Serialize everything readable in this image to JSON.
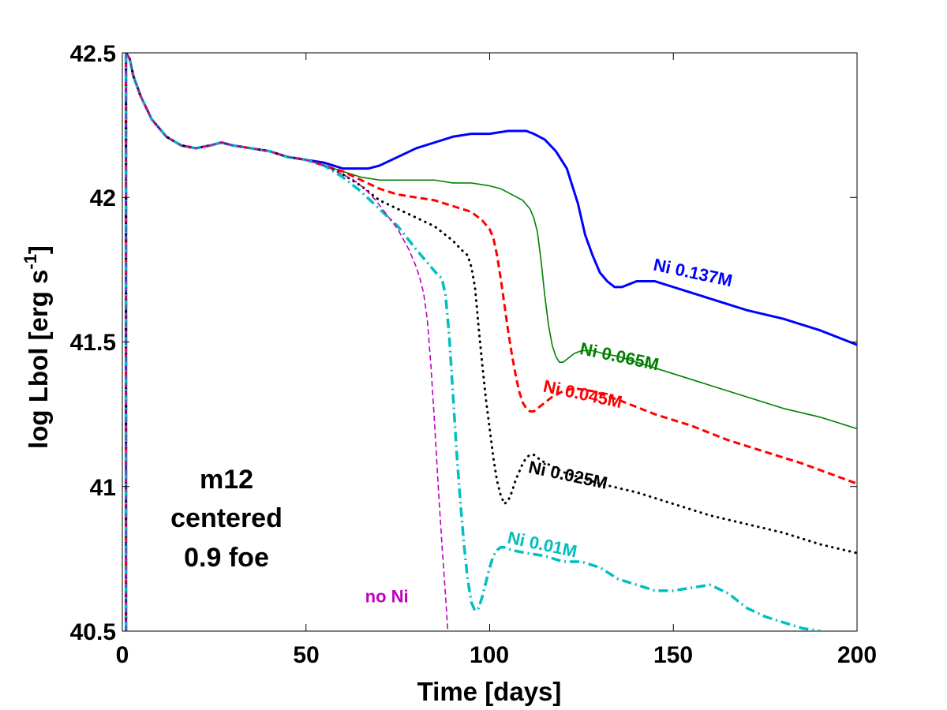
{
  "chart_data": {
    "type": "line",
    "title": "",
    "xlabel": "Time [days]",
    "ylabel": "log Lbol [erg s",
    "ylabel_sup": "-1",
    "ylabel_close": "]",
    "xlim": [
      0,
      200
    ],
    "ylim": [
      40.5,
      42.5
    ],
    "xticks": [
      0,
      50,
      100,
      150,
      200
    ],
    "xtick_labels": [
      "0",
      "50",
      "100",
      "150",
      "200"
    ],
    "yticks": [
      40.5,
      41,
      41.5,
      42,
      42.5
    ],
    "ytick_labels": [
      "40.5",
      "41",
      "41.5",
      "42",
      "42.5"
    ],
    "grid": false,
    "annotation": [
      "m12",
      "centered",
      "0.9 foe"
    ],
    "series": [
      {
        "name": "Ni 0.137M",
        "color": "#0000ff",
        "style": "solid-thick",
        "label_pos": [
          155,
          41.72
        ],
        "label_rot": 12,
        "x": [
          1,
          2,
          3,
          5,
          8,
          12,
          16,
          20,
          24,
          27,
          30,
          35,
          40,
          45,
          50,
          55,
          60,
          63,
          67,
          70,
          75,
          80,
          85,
          90,
          95,
          100,
          105,
          108,
          110,
          112,
          115,
          118,
          121,
          124,
          126,
          128,
          130,
          132,
          134,
          136,
          138,
          140,
          142,
          145,
          150,
          155,
          160,
          170,
          180,
          190,
          200
        ],
        "y": [
          42.5,
          42.48,
          42.42,
          42.35,
          42.27,
          42.21,
          42.18,
          42.17,
          42.18,
          42.19,
          42.18,
          42.17,
          42.16,
          42.14,
          42.13,
          42.12,
          42.1,
          42.1,
          42.1,
          42.11,
          42.14,
          42.17,
          42.19,
          42.21,
          42.22,
          42.22,
          42.23,
          42.23,
          42.23,
          42.22,
          42.2,
          42.16,
          42.1,
          41.98,
          41.87,
          41.8,
          41.74,
          41.71,
          41.69,
          41.69,
          41.7,
          41.71,
          41.71,
          41.71,
          41.69,
          41.67,
          41.65,
          41.61,
          41.58,
          41.54,
          41.49
        ]
      },
      {
        "name": "Ni 0.065M",
        "color": "#008000",
        "style": "solid-thin",
        "label_pos": [
          135,
          41.43
        ],
        "label_rot": 12,
        "x": [
          1,
          2,
          3,
          5,
          8,
          12,
          16,
          20,
          24,
          27,
          30,
          35,
          40,
          45,
          50,
          55,
          60,
          65,
          70,
          75,
          80,
          85,
          90,
          95,
          100,
          103,
          106,
          109,
          111,
          112,
          113,
          114,
          115,
          116,
          117,
          118,
          119,
          120,
          121,
          123,
          125,
          128,
          131,
          135,
          140,
          150,
          160,
          170,
          180,
          190,
          200
        ],
        "y": [
          42.5,
          42.48,
          42.42,
          42.35,
          42.27,
          42.21,
          42.18,
          42.17,
          42.18,
          42.19,
          42.18,
          42.17,
          42.16,
          42.14,
          42.13,
          42.11,
          42.09,
          42.07,
          42.06,
          42.06,
          42.06,
          42.06,
          42.05,
          42.05,
          42.04,
          42.03,
          42.01,
          41.99,
          41.96,
          41.93,
          41.88,
          41.78,
          41.66,
          41.56,
          41.49,
          41.45,
          41.43,
          41.43,
          41.44,
          41.46,
          41.47,
          41.47,
          41.46,
          41.45,
          41.43,
          41.39,
          41.35,
          41.31,
          41.27,
          41.24,
          41.2
        ]
      },
      {
        "name": "Ni 0.045M",
        "color": "#ff0000",
        "style": "dashed-thick",
        "label_pos": [
          125,
          41.3
        ],
        "label_rot": 12,
        "x": [
          1,
          2,
          3,
          5,
          8,
          12,
          16,
          20,
          24,
          27,
          30,
          35,
          40,
          45,
          50,
          55,
          60,
          65,
          70,
          75,
          80,
          85,
          90,
          95,
          98,
          100,
          101,
          102,
          103,
          104,
          105,
          106,
          107,
          108,
          109,
          110,
          111,
          112,
          113,
          115,
          117,
          120,
          123,
          128,
          135,
          145,
          155,
          165,
          175,
          185,
          200
        ],
        "y": [
          42.5,
          42.48,
          42.42,
          42.35,
          42.27,
          42.21,
          42.18,
          42.17,
          42.18,
          42.19,
          42.18,
          42.17,
          42.16,
          42.14,
          42.13,
          42.11,
          42.09,
          42.06,
          42.03,
          42.01,
          42.0,
          41.99,
          41.97,
          41.95,
          41.92,
          41.89,
          41.86,
          41.8,
          41.72,
          41.63,
          41.54,
          41.46,
          41.39,
          41.33,
          41.29,
          41.27,
          41.26,
          41.26,
          41.27,
          41.29,
          41.31,
          41.33,
          41.34,
          41.33,
          41.3,
          41.25,
          41.21,
          41.16,
          41.12,
          41.08,
          41.01
        ]
      },
      {
        "name": "Ni 0.025M",
        "color": "#000000",
        "style": "dotted",
        "label_pos": [
          121,
          41.02
        ],
        "label_rot": 12,
        "x": [
          1,
          2,
          3,
          5,
          8,
          12,
          16,
          20,
          24,
          27,
          30,
          35,
          40,
          45,
          50,
          55,
          60,
          65,
          70,
          75,
          80,
          85,
          90,
          93,
          94,
          95,
          96,
          97,
          98,
          99,
          100,
          101,
          102,
          103,
          104,
          105,
          106,
          107,
          108,
          109,
          110,
          111,
          112,
          114,
          117,
          120,
          125,
          130,
          140,
          150,
          160,
          170,
          180,
          190,
          200
        ],
        "y": [
          42.5,
          42.48,
          42.42,
          42.35,
          42.27,
          42.21,
          42.18,
          42.17,
          42.18,
          42.19,
          42.18,
          42.17,
          42.16,
          42.14,
          42.13,
          42.11,
          42.08,
          42.04,
          41.99,
          41.96,
          41.93,
          41.9,
          41.85,
          41.81,
          41.8,
          41.76,
          41.69,
          41.55,
          41.42,
          41.3,
          41.2,
          41.1,
          41.02,
          40.97,
          40.94,
          40.95,
          40.98,
          41.02,
          41.05,
          41.08,
          41.1,
          41.11,
          41.11,
          41.09,
          41.07,
          41.05,
          41.03,
          41.01,
          40.98,
          40.94,
          40.9,
          40.87,
          40.84,
          40.8,
          40.77
        ]
      },
      {
        "name": "Ni 0.01M",
        "color": "#00bfbf",
        "style": "dashdot-thick",
        "label_pos": [
          114,
          40.78
        ],
        "label_rot": 12,
        "x": [
          1,
          2,
          3,
          5,
          8,
          12,
          16,
          20,
          24,
          27,
          30,
          35,
          40,
          45,
          50,
          55,
          60,
          65,
          70,
          75,
          80,
          84,
          86,
          87,
          88,
          89,
          90,
          91,
          92,
          93,
          94,
          95,
          96,
          97,
          98,
          99,
          100,
          101,
          102,
          103,
          104,
          106,
          110,
          115,
          120,
          125,
          130,
          135,
          140,
          145,
          150,
          155,
          160,
          165,
          170,
          175,
          180,
          185,
          190
        ],
        "y": [
          42.5,
          42.48,
          42.42,
          42.35,
          42.27,
          42.21,
          42.18,
          42.17,
          42.18,
          42.19,
          42.18,
          42.17,
          42.16,
          42.14,
          42.13,
          42.11,
          42.07,
          42.02,
          41.96,
          41.9,
          41.82,
          41.76,
          41.73,
          41.72,
          41.66,
          41.52,
          41.32,
          41.12,
          40.95,
          40.8,
          40.68,
          40.6,
          40.57,
          40.58,
          40.62,
          40.67,
          40.72,
          40.76,
          40.78,
          40.79,
          40.79,
          40.78,
          40.77,
          40.76,
          40.74,
          40.74,
          40.72,
          40.68,
          40.66,
          40.64,
          40.64,
          40.65,
          40.66,
          40.63,
          40.58,
          40.55,
          40.53,
          40.51,
          40.5
        ]
      },
      {
        "name": "no Ni",
        "color": "#c000c0",
        "style": "dashed-thin",
        "label_pos": [
          72,
          40.6
        ],
        "label_rot": 0,
        "x": [
          1,
          2,
          3,
          5,
          8,
          12,
          16,
          20,
          24,
          27,
          30,
          35,
          40,
          45,
          50,
          55,
          60,
          63,
          66,
          69,
          72,
          75,
          78,
          80,
          81,
          82,
          83,
          84,
          85,
          86,
          87,
          88,
          88.6
        ],
        "y": [
          42.5,
          42.48,
          42.42,
          42.35,
          42.27,
          42.21,
          42.18,
          42.17,
          42.18,
          42.19,
          42.18,
          42.17,
          42.16,
          42.14,
          42.13,
          42.11,
          42.08,
          42.06,
          42.03,
          41.99,
          41.94,
          41.89,
          41.82,
          41.76,
          41.72,
          41.67,
          41.58,
          41.42,
          41.22,
          41.0,
          40.8,
          40.62,
          40.5
        ]
      }
    ]
  }
}
